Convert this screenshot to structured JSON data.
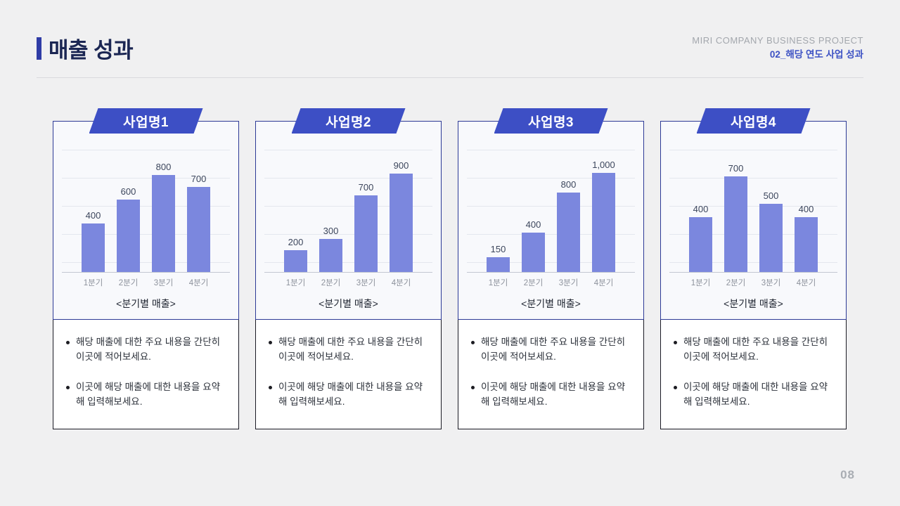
{
  "header": {
    "title": "매출 성과",
    "brand_line1": "MIRI COMPANY BUSINESS PROJECT",
    "brand_line2": "02_해당 연도 사업 성과"
  },
  "page_number": "08",
  "colors": {
    "accent": "#2f3ca6",
    "banner": "#3d4fc5",
    "bar": "#7b87de",
    "title_text": "#1b2653",
    "brand_blue": "#3d52c4"
  },
  "cards": [
    {
      "banner": "사업명1",
      "caption": "<분기별 매출>",
      "bullets": [
        "해당 매출에 대한 주요 내용을 간단히 이곳에 적어보세요.",
        "이곳에 해당 매출에 대한 내용을 요약해 입력해보세요."
      ]
    },
    {
      "banner": "사업명2",
      "caption": "<분기별 매출>",
      "bullets": [
        "해당 매출에 대한 주요 내용을 간단히 이곳에 적어보세요.",
        "이곳에 해당 매출에 대한 내용을 요약해 입력해보세요."
      ]
    },
    {
      "banner": "사업명3",
      "caption": "<분기별 매출>",
      "bullets": [
        "해당 매출에 대한 주요 내용을 간단히 이곳에 적어보세요.",
        "이곳에 해당 매출에 대한 내용을 요약해 입력해보세요."
      ]
    },
    {
      "banner": "사업명4",
      "caption": "<분기별 매출>",
      "bullets": [
        "해당 매출에 대한 주요 내용을 간단히 이곳에 적어보세요.",
        "이곳에 해당 매출에 대한 내용을 요약해 입력해보세요."
      ]
    }
  ],
  "chart_data": [
    {
      "type": "bar",
      "title": "사업명1",
      "categories": [
        "1분기",
        "2분기",
        "3분기",
        "4분기"
      ],
      "values": [
        400,
        600,
        800,
        700
      ],
      "ylim": [
        0,
        900
      ],
      "xlabel": "",
      "ylabel": "",
      "caption": "<분기별 매출>",
      "grid": true,
      "legend": false
    },
    {
      "type": "bar",
      "title": "사업명2",
      "categories": [
        "1분기",
        "2분기",
        "3분기",
        "4분기"
      ],
      "values": [
        200,
        300,
        700,
        900
      ],
      "ylim": [
        0,
        1000
      ],
      "xlabel": "",
      "ylabel": "",
      "caption": "<분기별 매출>",
      "grid": true,
      "legend": false
    },
    {
      "type": "bar",
      "title": "사업명3",
      "categories": [
        "1분기",
        "2분기",
        "3분기",
        "4분기"
      ],
      "values": [
        150,
        400,
        800,
        1000
      ],
      "ylim": [
        0,
        1100
      ],
      "xlabel": "",
      "ylabel": "",
      "caption": "<분기별 매출>",
      "grid": true,
      "legend": false
    },
    {
      "type": "bar",
      "title": "사업명4",
      "categories": [
        "1분기",
        "2분기",
        "3분기",
        "4분기"
      ],
      "values": [
        400,
        700,
        500,
        400
      ],
      "ylim": [
        0,
        800
      ],
      "xlabel": "",
      "ylabel": "",
      "caption": "<분기별 매출>",
      "grid": true,
      "legend": false
    }
  ]
}
